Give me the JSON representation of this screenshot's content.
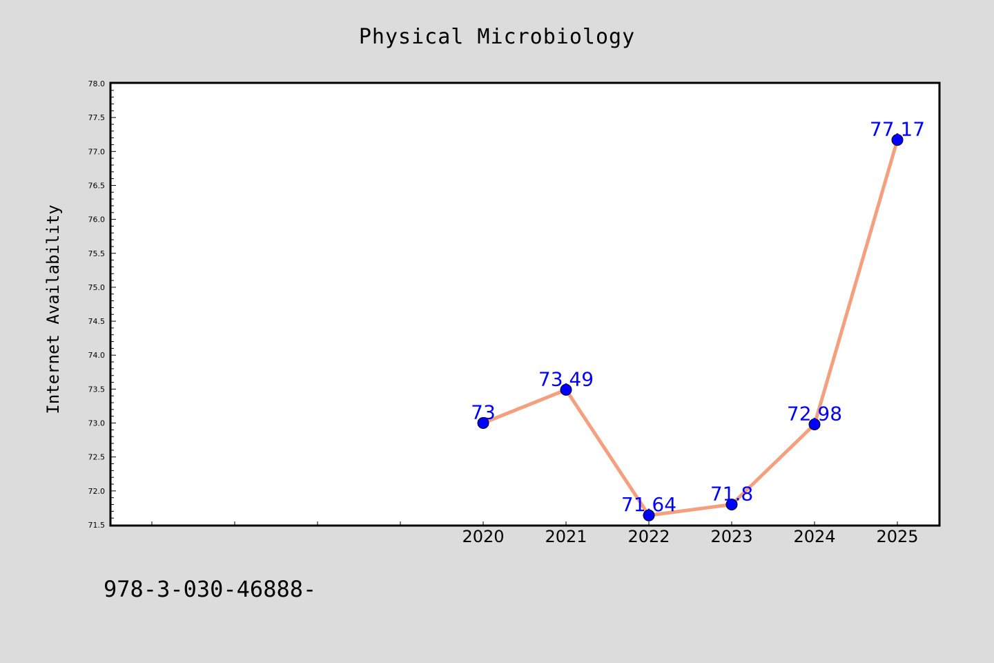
{
  "chart_data": {
    "type": "line",
    "title": "Physical Microbiology",
    "ylabel": "Internet Availability",
    "xlabel": "",
    "x": [
      "2020",
      "2021",
      "2022",
      "2023",
      "2024",
      "2025"
    ],
    "series": [
      {
        "values": [
          73.0,
          73.49,
          71.64,
          71.8,
          72.98,
          77.17
        ],
        "labels": [
          "73",
          "73.49",
          "71.64",
          "71.8",
          "72.98",
          "77.17"
        ]
      }
    ],
    "ylim": [
      71.5,
      78.0
    ],
    "yticks": [
      "71.5",
      "72.0",
      "72.5",
      "73.0",
      "73.5",
      "74.0",
      "74.5",
      "75.0",
      "75.5",
      "76.0",
      "76.5",
      "77.0",
      "77.5",
      "78.0"
    ],
    "grid": false,
    "legend": "none",
    "colors": {
      "line": "#f4a07e",
      "marker": "#0000ff",
      "data_label": "#0000ff",
      "background": "#dcdcdc",
      "plot_background": "#ffffff"
    }
  },
  "footer": {
    "isbn": "978-3-030-46888-"
  }
}
